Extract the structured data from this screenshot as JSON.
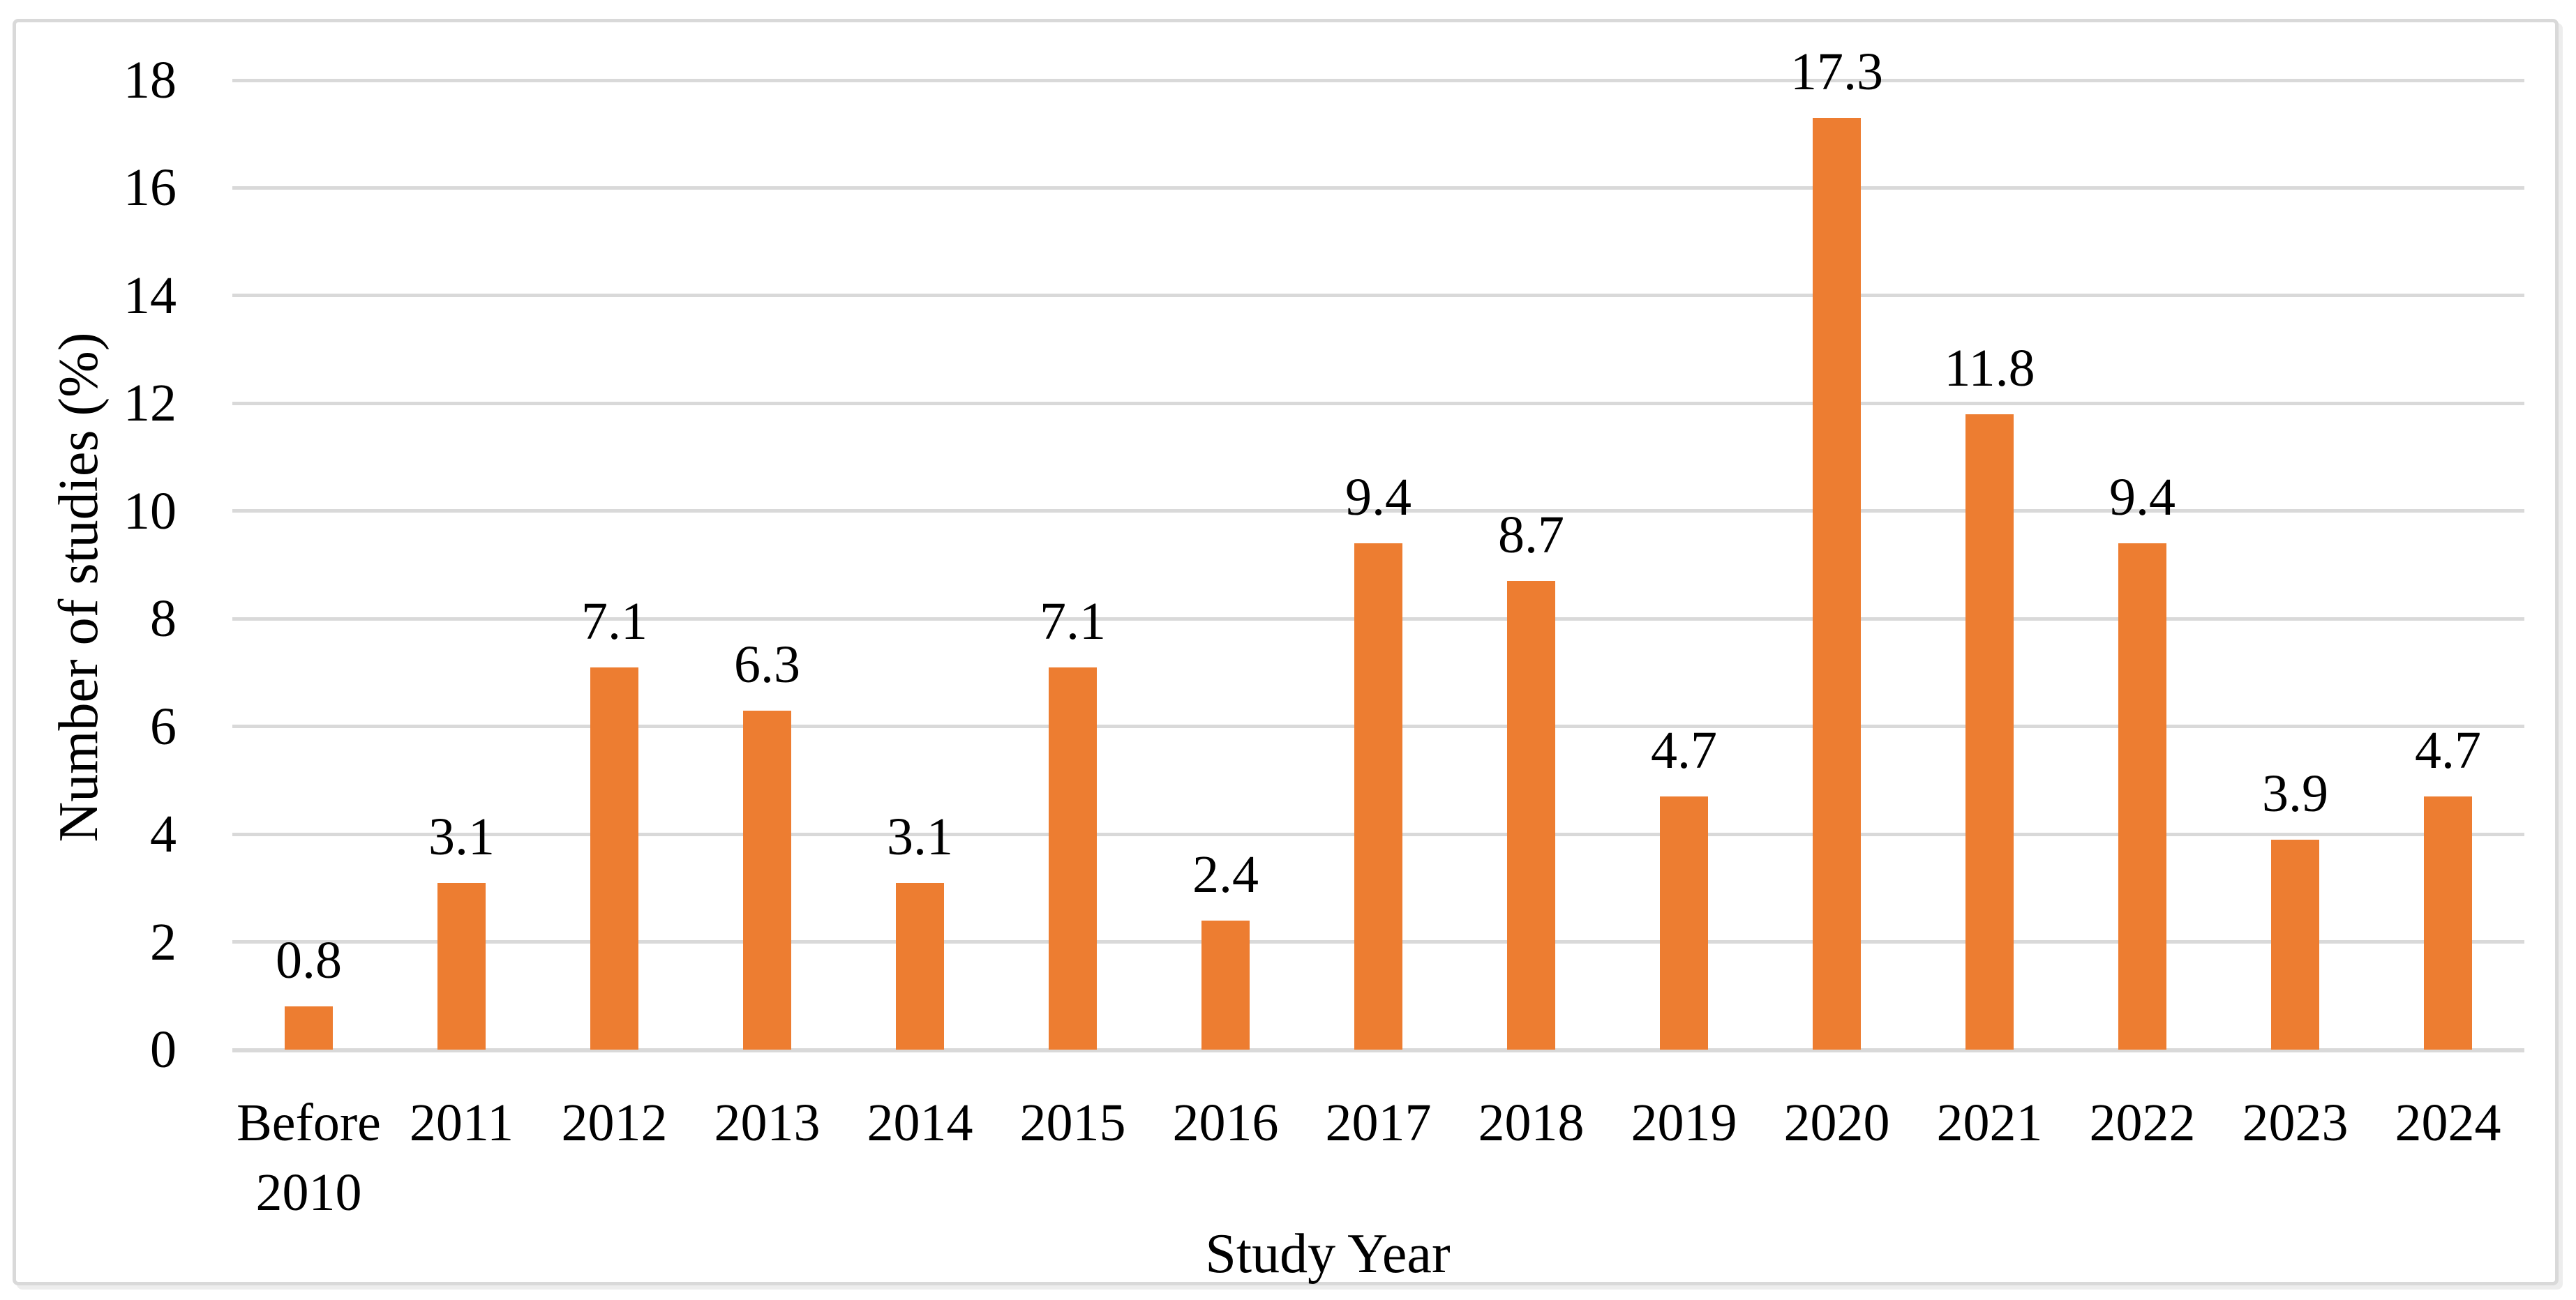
{
  "figure": {
    "description": "Bar chart of percentage of studies per study year",
    "background_color": "#FFFFFF",
    "frame_color": "#D9D9D9"
  },
  "chart_data": {
    "type": "bar",
    "title": "",
    "xlabel": "Study Year",
    "ylabel": "Number of studies (%)",
    "categories": [
      "Before 2010",
      "2011",
      "2012",
      "2013",
      "2014",
      "2015",
      "2016",
      "2017",
      "2018",
      "2019",
      "2020",
      "2021",
      "2022",
      "2023",
      "2024"
    ],
    "values": [
      0.8,
      3.1,
      7.1,
      6.3,
      3.1,
      7.1,
      2.4,
      9.4,
      8.7,
      4.7,
      17.3,
      11.8,
      9.4,
      3.9,
      4.7
    ],
    "data_labels": [
      "0.8",
      "3.1",
      "7.1",
      "6.3",
      "3.1",
      "7.1",
      "2.4",
      "9.4",
      "8.7",
      "4.7",
      "17.3",
      "11.8",
      "9.4",
      "3.9",
      "4.7"
    ],
    "yticks": [
      0,
      2,
      4,
      6,
      8,
      10,
      12,
      14,
      16,
      18
    ],
    "ylim": [
      0,
      18
    ],
    "grid": "horizontal",
    "legend": "none",
    "bar_color": "#ED7D31",
    "gridline_color": "#D9D9D9",
    "text_color": "#000000"
  }
}
